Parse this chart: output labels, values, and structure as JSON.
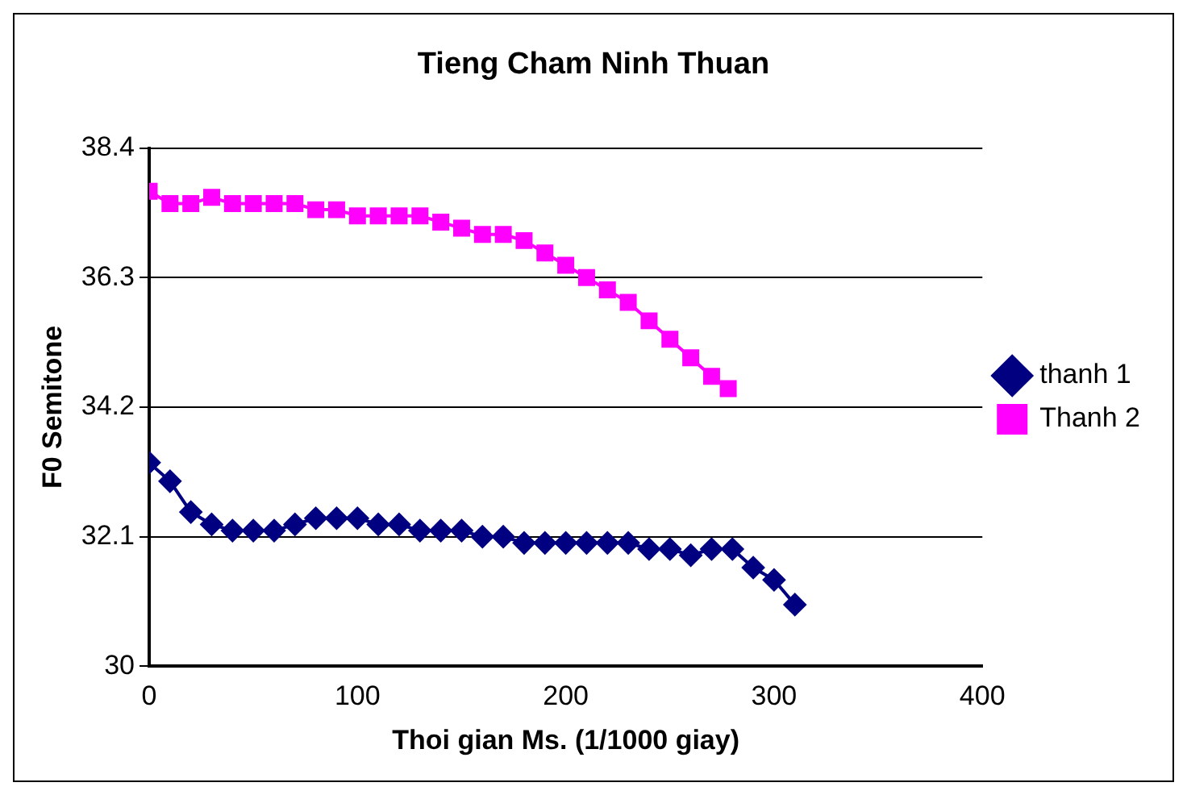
{
  "chart_data": {
    "type": "line",
    "title": "Tieng Cham Ninh Thuan",
    "xlabel": "Thoi gian Ms. (1/1000 giay)",
    "ylabel": "F0 Semitone",
    "xlim": [
      0,
      400
    ],
    "xticks": [
      0,
      100,
      200,
      300,
      400
    ],
    "ylim": [
      30,
      38.4
    ],
    "yticks": [
      30,
      32.1,
      34.2,
      36.3,
      38.4
    ],
    "grid": "y",
    "legend": "right",
    "series": [
      {
        "name": "thanh 1",
        "color": "#000080",
        "marker": "diamond",
        "x": [
          0,
          10,
          20,
          30,
          40,
          50,
          60,
          70,
          80,
          90,
          100,
          110,
          120,
          130,
          140,
          150,
          160,
          170,
          180,
          190,
          200,
          210,
          220,
          230,
          240,
          250,
          260,
          270,
          280,
          290,
          300,
          310
        ],
        "values": [
          33.3,
          33.0,
          32.5,
          32.3,
          32.2,
          32.2,
          32.2,
          32.3,
          32.4,
          32.4,
          32.4,
          32.3,
          32.3,
          32.2,
          32.2,
          32.2,
          32.1,
          32.1,
          32.0,
          32.0,
          32.0,
          32.0,
          32.0,
          32.0,
          31.9,
          31.9,
          31.8,
          31.9,
          31.9,
          31.6,
          31.4,
          31.0
        ]
      },
      {
        "name": "Thanh 2",
        "color": "#ff00ff",
        "marker": "square",
        "x": [
          0,
          10,
          20,
          30,
          40,
          50,
          60,
          70,
          80,
          90,
          100,
          110,
          120,
          130,
          140,
          150,
          160,
          170,
          180,
          190,
          200,
          210,
          220,
          230,
          240,
          250,
          260,
          270,
          278
        ],
        "values": [
          37.7,
          37.5,
          37.5,
          37.6,
          37.5,
          37.5,
          37.5,
          37.5,
          37.4,
          37.4,
          37.3,
          37.3,
          37.3,
          37.3,
          37.2,
          37.1,
          37.0,
          37.0,
          36.9,
          36.7,
          36.5,
          36.3,
          36.1,
          35.9,
          35.6,
          35.3,
          35.0,
          34.7,
          34.5
        ]
      }
    ]
  }
}
